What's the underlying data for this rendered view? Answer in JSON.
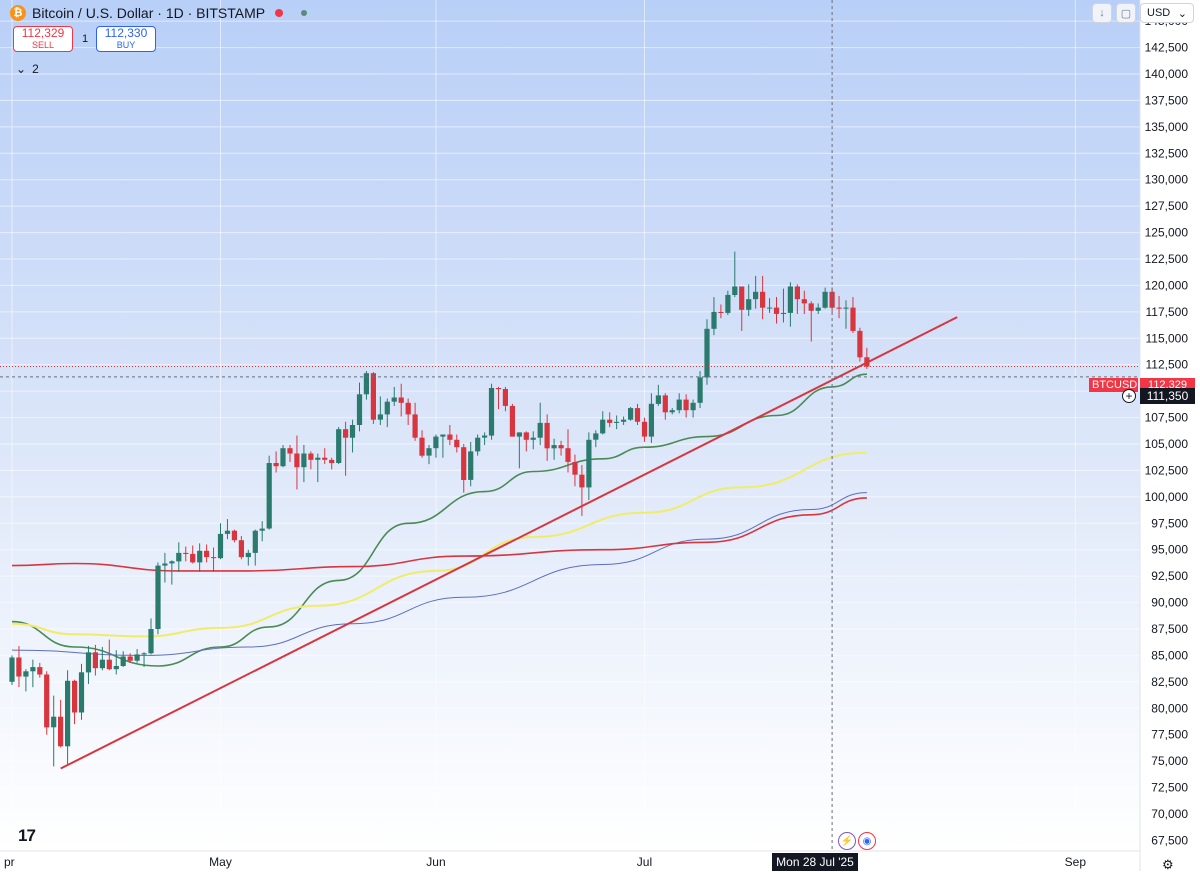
{
  "header": {
    "logo": "bitcoin-icon",
    "logo_glyph": "₿",
    "title": "Bitcoin / U.S. Dollar · 1D · BITSTAMP"
  },
  "trade": {
    "sell_price": "112,329",
    "sell_label": "SELL",
    "spread": "1",
    "buy_price": "112,330",
    "buy_label": "BUY"
  },
  "indicators": {
    "chevron": "⌄",
    "count": "2"
  },
  "controls": {
    "currency": "USD",
    "currency_chevron": "⌄",
    "download_glyph": "↓",
    "snapshot_glyph": "▢"
  },
  "badges": {
    "symbol": "BTCUSD",
    "last_price": "112,329",
    "cursor_price": "111,350",
    "cursor_date": "Mon 28 Jul '25",
    "add_glyph": "+"
  },
  "footer": {
    "logo_text": "17",
    "lightning_glyph": "⚡",
    "flag_glyph": "◉",
    "settings_glyph": "⚙"
  },
  "colors": {
    "up": "#26a69a",
    "up_body": "#2a7a6e",
    "down": "#d8353f",
    "trendline": "#d8353f",
    "ma_green": "#4a8a55",
    "ma_yellow": "#f0ec6a",
    "ma_blue": "#5c6fc0",
    "ma_red": "#d8353f"
  },
  "chart_data": {
    "type": "candlestick",
    "y_ticks": [
      "145,000",
      "142,500",
      "140,000",
      "137,500",
      "135,000",
      "132,500",
      "130,000",
      "127,500",
      "125,000",
      "122,500",
      "120,000",
      "117,500",
      "115,000",
      "112,500",
      "110,000",
      "107,500",
      "105,000",
      "102,500",
      "100,000",
      "97,500",
      "95,000",
      "92,500",
      "90,000",
      "87,500",
      "85,000",
      "82,500",
      "80,000",
      "77,500",
      "75,000",
      "72,500",
      "70,000",
      "67,500"
    ],
    "ylim": [
      66500,
      147000
    ],
    "x_ticks": [
      {
        "label": "pr",
        "date": "2025-04-01"
      },
      {
        "label": "May",
        "date": "2025-05-01"
      },
      {
        "label": "Jun",
        "date": "2025-06-01"
      },
      {
        "label": "Jul",
        "date": "2025-07-01"
      },
      {
        "label": "Sep",
        "date": "2025-09-01"
      }
    ],
    "cursor": {
      "date": "2025-07-28",
      "price": 111350
    },
    "last_price": 112329,
    "candles": [
      [
        "2025-04-01",
        82500,
        85000,
        82200,
        84800
      ],
      [
        "2025-04-02",
        84800,
        85900,
        82000,
        83000
      ],
      [
        "2025-04-03",
        83000,
        83700,
        81600,
        83500
      ],
      [
        "2025-04-04",
        83500,
        84600,
        82000,
        83900
      ],
      [
        "2025-04-05",
        83900,
        84300,
        82900,
        83200
      ],
      [
        "2025-04-06",
        83200,
        83500,
        77500,
        78200
      ],
      [
        "2025-04-07",
        78200,
        81200,
        74500,
        79200
      ],
      [
        "2025-04-08",
        79200,
        80800,
        76300,
        76400
      ],
      [
        "2025-04-09",
        76400,
        83600,
        74700,
        82600
      ],
      [
        "2025-04-10",
        82600,
        82700,
        78500,
        79600
      ],
      [
        "2025-04-11",
        79600,
        84200,
        78900,
        83400
      ],
      [
        "2025-04-12",
        83400,
        85900,
        82300,
        85300
      ],
      [
        "2025-04-13",
        85300,
        86000,
        83100,
        83800
      ],
      [
        "2025-04-14",
        83800,
        85800,
        83600,
        84600
      ],
      [
        "2025-04-15",
        84600,
        86500,
        83600,
        83700
      ],
      [
        "2025-04-16",
        83700,
        85500,
        83200,
        84000
      ],
      [
        "2025-04-17",
        84000,
        85400,
        83900,
        84900
      ],
      [
        "2025-04-18",
        84900,
        85200,
        84300,
        84500
      ],
      [
        "2025-04-19",
        84500,
        85600,
        84300,
        85100
      ],
      [
        "2025-04-20",
        85100,
        85300,
        83900,
        85200
      ],
      [
        "2025-04-21",
        85200,
        88500,
        85100,
        87500
      ],
      [
        "2025-04-22",
        87500,
        93800,
        87000,
        93500
      ],
      [
        "2025-04-23",
        93500,
        94700,
        91900,
        93700
      ],
      [
        "2025-04-24",
        93700,
        94000,
        91700,
        93900
      ],
      [
        "2025-04-25",
        93900,
        95700,
        92900,
        94700
      ],
      [
        "2025-04-26",
        94700,
        95300,
        93900,
        94600
      ],
      [
        "2025-04-27",
        94600,
        95400,
        93700,
        93800
      ],
      [
        "2025-04-28",
        93800,
        95600,
        92900,
        94900
      ],
      [
        "2025-04-29",
        94900,
        95500,
        93800,
        94300
      ],
      [
        "2025-04-30",
        94300,
        95200,
        92900,
        94200
      ],
      [
        "2025-05-01",
        94200,
        97500,
        94100,
        96500
      ],
      [
        "2025-05-02",
        96500,
        97900,
        96000,
        96800
      ],
      [
        "2025-05-03",
        96800,
        96900,
        95700,
        95900
      ],
      [
        "2025-05-04",
        95900,
        96300,
        94100,
        94300
      ],
      [
        "2025-05-05",
        94300,
        95000,
        93500,
        94700
      ],
      [
        "2025-05-06",
        94700,
        96900,
        93500,
        96800
      ],
      [
        "2025-05-07",
        96800,
        97700,
        95800,
        97000
      ],
      [
        "2025-05-08",
        97000,
        103900,
        96900,
        103200
      ],
      [
        "2025-05-09",
        103200,
        104300,
        102300,
        102900
      ],
      [
        "2025-05-10",
        102900,
        104900,
        102800,
        104600
      ],
      [
        "2025-05-11",
        104600,
        104900,
        103300,
        104100
      ],
      [
        "2025-05-12",
        104100,
        105800,
        100700,
        102800
      ],
      [
        "2025-05-13",
        102800,
        104900,
        101400,
        104100
      ],
      [
        "2025-05-14",
        104100,
        104300,
        102600,
        103500
      ],
      [
        "2025-05-15",
        103500,
        104100,
        101400,
        103700
      ],
      [
        "2025-05-16",
        103700,
        104600,
        103100,
        103500
      ],
      [
        "2025-05-17",
        103500,
        103700,
        102600,
        103200
      ],
      [
        "2025-05-18",
        103200,
        106600,
        103100,
        106400
      ],
      [
        "2025-05-19",
        106400,
        107100,
        102000,
        105600
      ],
      [
        "2025-05-20",
        105600,
        107300,
        104200,
        106800
      ],
      [
        "2025-05-21",
        106800,
        110800,
        106200,
        109700
      ],
      [
        "2025-05-22",
        109700,
        111900,
        109200,
        111700
      ],
      [
        "2025-05-23",
        111700,
        111800,
        106900,
        107300
      ],
      [
        "2025-05-24",
        107300,
        109500,
        106800,
        107800
      ],
      [
        "2025-05-25",
        107800,
        109300,
        106600,
        109000
      ],
      [
        "2025-05-26",
        109000,
        110400,
        108600,
        109400
      ],
      [
        "2025-05-27",
        109400,
        110700,
        107600,
        108900
      ],
      [
        "2025-05-28",
        108900,
        109300,
        106800,
        107800
      ],
      [
        "2025-05-29",
        107800,
        108900,
        105300,
        105600
      ],
      [
        "2025-05-30",
        105600,
        106300,
        103700,
        103900
      ],
      [
        "2025-05-31",
        103900,
        104900,
        103100,
        104600
      ],
      [
        "2025-06-01",
        104600,
        105900,
        103700,
        105700
      ],
      [
        "2025-06-02",
        105700,
        105900,
        103700,
        105900
      ],
      [
        "2025-06-03",
        105900,
        106800,
        104900,
        105400
      ],
      [
        "2025-06-04",
        105400,
        105900,
        104200,
        104700
      ],
      [
        "2025-06-05",
        104700,
        105000,
        100400,
        101600
      ],
      [
        "2025-06-06",
        101600,
        105200,
        101000,
        104300
      ],
      [
        "2025-06-07",
        104300,
        105900,
        103900,
        105600
      ],
      [
        "2025-06-08",
        105600,
        106100,
        104900,
        105800
      ],
      [
        "2025-06-09",
        105800,
        110700,
        105400,
        110300
      ],
      [
        "2025-06-10",
        110300,
        110400,
        108300,
        110200
      ],
      [
        "2025-06-11",
        110200,
        110400,
        108100,
        108600
      ],
      [
        "2025-06-12",
        108600,
        108800,
        105700,
        105700
      ],
      [
        "2025-06-13",
        105700,
        106100,
        102700,
        106100
      ],
      [
        "2025-06-14",
        106100,
        106200,
        104300,
        105400
      ],
      [
        "2025-06-15",
        105400,
        106200,
        104500,
        105600
      ],
      [
        "2025-06-16",
        105600,
        108900,
        104900,
        107000
      ],
      [
        "2025-06-17",
        107000,
        107800,
        103400,
        104600
      ],
      [
        "2025-06-18",
        104600,
        105500,
        103500,
        104900
      ],
      [
        "2025-06-19",
        104900,
        105300,
        103900,
        104600
      ],
      [
        "2025-06-20",
        104600,
        106400,
        102300,
        103300
      ],
      [
        "2025-06-21",
        103300,
        104000,
        101000,
        102100
      ],
      [
        "2025-06-22",
        102100,
        103000,
        98200,
        100900
      ],
      [
        "2025-06-23",
        100900,
        106100,
        99700,
        105400
      ],
      [
        "2025-06-24",
        105400,
        106300,
        104700,
        106000
      ],
      [
        "2025-06-25",
        106000,
        108100,
        105900,
        107300
      ],
      [
        "2025-06-26",
        107300,
        108000,
        106600,
        107000
      ],
      [
        "2025-06-27",
        107000,
        107700,
        106400,
        107100
      ],
      [
        "2025-06-28",
        107100,
        107600,
        106800,
        107300
      ],
      [
        "2025-06-29",
        107300,
        108500,
        107200,
        108400
      ],
      [
        "2025-06-30",
        108400,
        108800,
        106800,
        107100
      ],
      [
        "2025-07-01",
        107100,
        107500,
        105200,
        105700
      ],
      [
        "2025-07-02",
        105700,
        109800,
        105100,
        108800
      ],
      [
        "2025-07-03",
        108800,
        110600,
        108600,
        109600
      ],
      [
        "2025-07-04",
        109600,
        109800,
        107300,
        108000
      ],
      [
        "2025-07-05",
        108000,
        108400,
        107800,
        108200
      ],
      [
        "2025-07-06",
        108200,
        109800,
        107900,
        109200
      ],
      [
        "2025-07-07",
        109200,
        109700,
        107500,
        108200
      ],
      [
        "2025-07-08",
        108200,
        109200,
        107500,
        108900
      ],
      [
        "2025-07-09",
        108900,
        111900,
        108400,
        111300
      ],
      [
        "2025-07-10",
        111300,
        116800,
        110600,
        115900
      ],
      [
        "2025-07-11",
        115900,
        118900,
        115300,
        117500
      ],
      [
        "2025-07-12",
        117500,
        118200,
        116900,
        117400
      ],
      [
        "2025-07-13",
        117400,
        119500,
        117200,
        119100
      ],
      [
        "2025-07-14",
        119100,
        123200,
        118900,
        119900
      ],
      [
        "2025-07-15",
        119900,
        119900,
        115700,
        117700
      ],
      [
        "2025-07-16",
        117700,
        120100,
        117100,
        118700
      ],
      [
        "2025-07-17",
        118700,
        120900,
        117800,
        119400
      ],
      [
        "2025-07-18",
        119400,
        120900,
        116800,
        117900
      ],
      [
        "2025-07-19",
        117900,
        118800,
        117400,
        117900
      ],
      [
        "2025-07-20",
        117900,
        118900,
        116400,
        117300
      ],
      [
        "2025-07-21",
        117300,
        119700,
        116500,
        117400
      ],
      [
        "2025-07-22",
        117400,
        120300,
        116100,
        119900
      ],
      [
        "2025-07-23",
        119900,
        120100,
        117300,
        118700
      ],
      [
        "2025-07-24",
        118700,
        119500,
        117300,
        118300
      ],
      [
        "2025-07-25",
        118300,
        118500,
        114700,
        117600
      ],
      [
        "2025-07-26",
        117600,
        118300,
        117300,
        117900
      ],
      [
        "2025-07-27",
        117900,
        119800,
        117800,
        119400
      ],
      [
        "2025-07-28",
        119400,
        119800,
        117400,
        117900
      ],
      [
        "2025-07-29",
        117900,
        119000,
        116900,
        117800
      ],
      [
        "2025-07-30",
        117800,
        118600,
        115900,
        117900
      ],
      [
        "2025-07-31",
        117900,
        118900,
        115500,
        115700
      ],
      [
        "2025-08-01",
        115700,
        116000,
        112800,
        113200
      ],
      [
        "2025-08-02",
        113200,
        114100,
        112100,
        112329
      ]
    ],
    "trendline": [
      [
        "2025-04-08",
        74300
      ],
      [
        "2025-08-15",
        117000
      ]
    ],
    "moving_averages": [
      {
        "color": "green",
        "points": [
          [
            "2025-04-01",
            88200
          ],
          [
            "2025-04-10",
            85800
          ],
          [
            "2025-04-22",
            84000
          ],
          [
            "2025-05-01",
            85800
          ],
          [
            "2025-05-08",
            87700
          ],
          [
            "2025-05-18",
            92100
          ],
          [
            "2025-05-28",
            97500
          ],
          [
            "2025-06-08",
            100500
          ],
          [
            "2025-06-15",
            102400
          ],
          [
            "2025-06-25",
            103600
          ],
          [
            "2025-07-01",
            104700
          ],
          [
            "2025-07-10",
            105700
          ],
          [
            "2025-07-20",
            107700
          ],
          [
            "2025-07-28",
            110400
          ],
          [
            "2025-08-02",
            111600
          ]
        ]
      },
      {
        "color": "yellow",
        "points": [
          [
            "2025-04-01",
            88000
          ],
          [
            "2025-04-10",
            87000
          ],
          [
            "2025-04-20",
            86800
          ],
          [
            "2025-05-01",
            87600
          ],
          [
            "2025-05-15",
            89700
          ],
          [
            "2025-06-01",
            93000
          ],
          [
            "2025-06-15",
            96200
          ],
          [
            "2025-07-01",
            98500
          ],
          [
            "2025-07-15",
            100900
          ],
          [
            "2025-08-02",
            104200
          ]
        ]
      },
      {
        "color": "blue",
        "points": [
          [
            "2025-04-01",
            85500
          ],
          [
            "2025-04-20",
            85000
          ],
          [
            "2025-05-05",
            85800
          ],
          [
            "2025-05-20",
            88000
          ],
          [
            "2025-06-05",
            90500
          ],
          [
            "2025-06-25",
            93600
          ],
          [
            "2025-07-10",
            96000
          ],
          [
            "2025-07-25",
            98800
          ],
          [
            "2025-08-02",
            100400
          ]
        ]
      },
      {
        "color": "red",
        "points": [
          [
            "2025-04-01",
            93500
          ],
          [
            "2025-04-10",
            93700
          ],
          [
            "2025-04-25",
            93000
          ],
          [
            "2025-05-05",
            93000
          ],
          [
            "2025-05-20",
            93400
          ],
          [
            "2025-06-05",
            94400
          ],
          [
            "2025-06-25",
            95000
          ],
          [
            "2025-07-10",
            95700
          ],
          [
            "2025-07-25",
            98300
          ],
          [
            "2025-08-02",
            99900
          ]
        ]
      }
    ]
  }
}
